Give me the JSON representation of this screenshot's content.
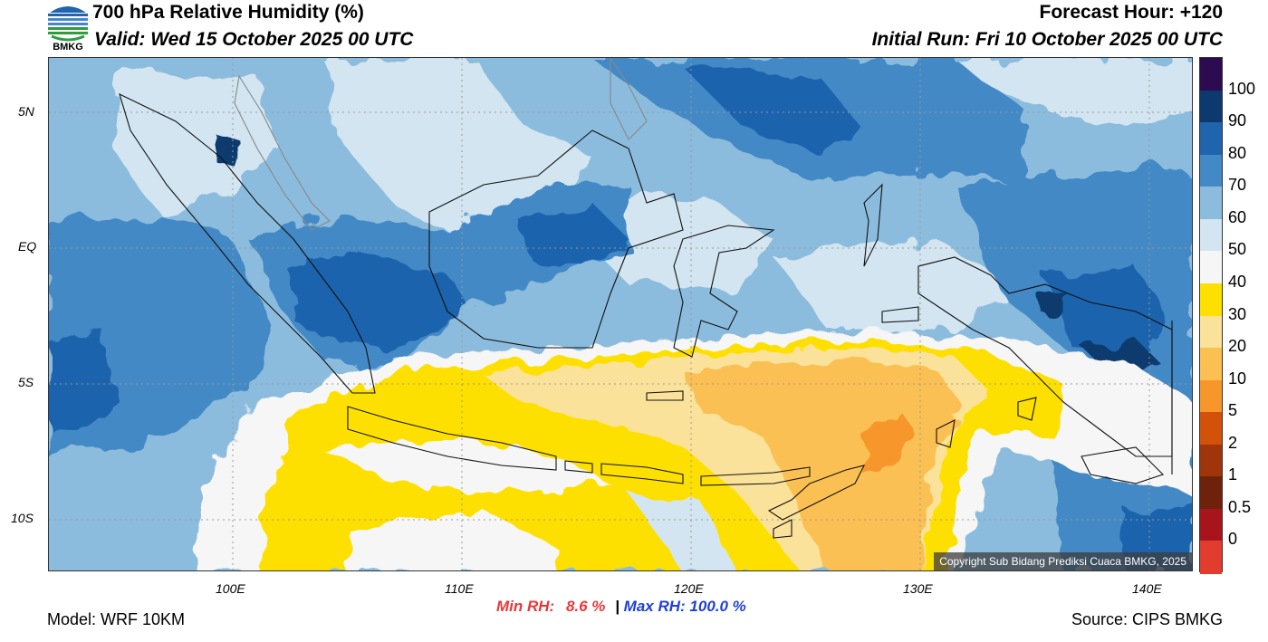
{
  "header": {
    "title": "700 hPa Relative Humidity (%)",
    "valid": "Valid: Wed 15 October 2025 00 UTC",
    "forecast_hour": "Forecast Hour: +120",
    "initial_run": "Initial Run: Fri 10 October 2025 00 UTC",
    "logo_text": "BMKG"
  },
  "axes": {
    "lat_labels": [
      "5N",
      "EQ",
      "5S",
      "10S"
    ],
    "lon_labels": [
      "100E",
      "110E",
      "120E",
      "130E",
      "140E"
    ]
  },
  "colorbar": {
    "labels": [
      "100",
      "90",
      "80",
      "70",
      "60",
      "50",
      "40",
      "30",
      "20",
      "10",
      "5",
      "2",
      "1",
      "0.5",
      "0"
    ],
    "colors": [
      "#2d0b50",
      "#0c3a6e",
      "#1f64ad",
      "#4389c6",
      "#8cbcdd",
      "#d3e5f1",
      "#f6f6f6",
      "#fde000",
      "#fbe29a",
      "#fbc052",
      "#f7962b",
      "#d2520a",
      "#a0340a",
      "#6e220c",
      "#a8141c",
      "#e23c2e"
    ]
  },
  "stats": {
    "min_label": "Min RH:",
    "min_value": "8.6 %",
    "separator": "|",
    "max_label": "Max RH:",
    "max_value": "100.0 %"
  },
  "footer": {
    "model": "Model: WRF 10KM",
    "source": "Source: CIPS BMKG",
    "copyright": "Copyright Sub Bidang Prediksi Cuaca BMKG, 2025"
  }
}
